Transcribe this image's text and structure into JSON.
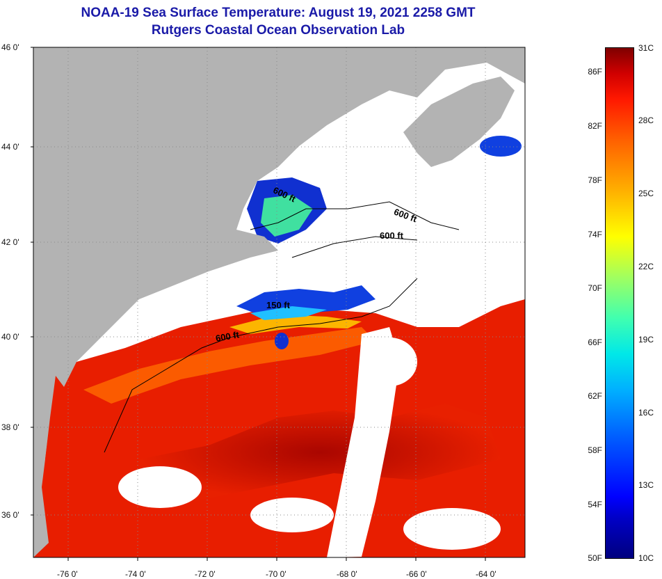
{
  "title": {
    "line1": "NOAA-19 Sea Surface Temperature:  August 19, 2021 2258 GMT",
    "line2": "Rutgers Coastal Ocean Observation Lab"
  },
  "axes": {
    "lat_labels": [
      "46 0'",
      "44 0'",
      "42 0'",
      "40 0'",
      "38 0'",
      "36 0'"
    ],
    "lon_labels": [
      "-76 0'",
      "-74 0'",
      "-72 0'",
      "-70 0'",
      "-68 0'",
      "-66 0'",
      "-64 0'"
    ]
  },
  "contours": [
    "600 ft",
    "600 ft",
    "600 ft",
    "150 ft",
    "600 ft"
  ],
  "colorbar": {
    "fahrenheit": [
      "86F",
      "82F",
      "78F",
      "74F",
      "70F",
      "66F",
      "62F",
      "58F",
      "54F",
      "50F"
    ],
    "celsius": [
      "31C",
      "28C",
      "25C",
      "22C",
      "19C",
      "16C",
      "13C",
      "10C"
    ]
  },
  "colors": {
    "land": "#b3b3b3",
    "cloud": "#ffffff",
    "warm": "#e81800",
    "cold": "#1030d0",
    "title": "#1a1aa8"
  }
}
